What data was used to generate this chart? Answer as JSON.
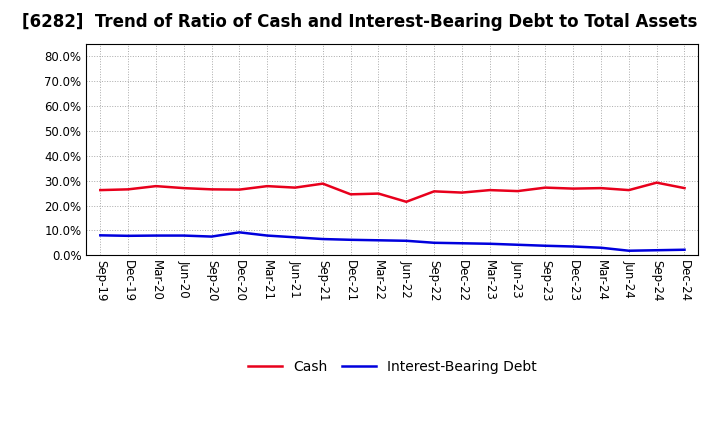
{
  "title": "[6282]  Trend of Ratio of Cash and Interest-Bearing Debt to Total Assets",
  "x_labels": [
    "Sep-19",
    "Dec-19",
    "Mar-20",
    "Jun-20",
    "Sep-20",
    "Dec-20",
    "Mar-21",
    "Jun-21",
    "Sep-21",
    "Dec-21",
    "Mar-22",
    "Jun-22",
    "Sep-22",
    "Dec-22",
    "Mar-23",
    "Jun-23",
    "Sep-23",
    "Dec-23",
    "Mar-24",
    "Jun-24",
    "Sep-24",
    "Dec-24"
  ],
  "cash": [
    0.262,
    0.265,
    0.278,
    0.27,
    0.265,
    0.264,
    0.278,
    0.272,
    0.288,
    0.245,
    0.248,
    0.215,
    0.257,
    0.252,
    0.262,
    0.258,
    0.272,
    0.268,
    0.27,
    0.262,
    0.292,
    0.27
  ],
  "ibd": [
    0.08,
    0.078,
    0.079,
    0.079,
    0.075,
    0.092,
    0.079,
    0.072,
    0.065,
    0.062,
    0.06,
    0.058,
    0.05,
    0.048,
    0.046,
    0.042,
    0.038,
    0.035,
    0.03,
    0.018,
    0.02,
    0.022
  ],
  "cash_color": "#e8001c",
  "ibd_color": "#0000dd",
  "background_color": "#ffffff",
  "plot_bg_color": "#ffffff",
  "grid_color": "#aaaaaa",
  "ylim": [
    0.0,
    0.85
  ],
  "yticks": [
    0.0,
    0.1,
    0.2,
    0.3,
    0.4,
    0.5,
    0.6,
    0.7,
    0.8
  ],
  "legend_cash": "Cash",
  "legend_ibd": "Interest-Bearing Debt",
  "title_fontsize": 12,
  "label_fontsize": 8.5,
  "legend_fontsize": 10,
  "line_width": 1.8
}
